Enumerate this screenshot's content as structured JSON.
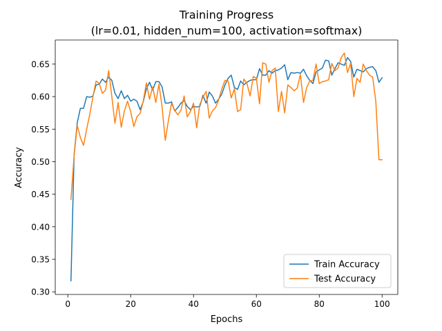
{
  "chart_data": {
    "type": "line",
    "title": "Training Progress",
    "subtitle": "(lr=0.01, hidden_num=100, activation=softmax)",
    "xlabel": "Epochs",
    "ylabel": "Accuracy",
    "xlim": [
      -4,
      105
    ],
    "ylim": [
      0.296,
      0.687
    ],
    "xticks": [
      0,
      20,
      40,
      60,
      80,
      100
    ],
    "yticks": [
      0.3,
      0.35,
      0.4,
      0.45,
      0.5,
      0.55,
      0.6,
      0.65
    ],
    "grid": false,
    "legend_position": "lower-right",
    "series": [
      {
        "name": "Train Accuracy",
        "color": "#1f77b4",
        "x": [
          1,
          2,
          3,
          4,
          5,
          6,
          7,
          8,
          9,
          10,
          11,
          12,
          13,
          14,
          15,
          16,
          17,
          18,
          19,
          20,
          21,
          22,
          23,
          24,
          25,
          26,
          27,
          28,
          29,
          30,
          31,
          32,
          33,
          34,
          35,
          36,
          37,
          38,
          39,
          40,
          41,
          42,
          43,
          44,
          45,
          46,
          47,
          48,
          49,
          50,
          51,
          52,
          53,
          54,
          55,
          56,
          57,
          58,
          59,
          60,
          61,
          62,
          63,
          64,
          65,
          66,
          67,
          68,
          69,
          70,
          71,
          72,
          73,
          74,
          75,
          76,
          77,
          78,
          79,
          80,
          81,
          82,
          83,
          84,
          85,
          86,
          87,
          88,
          89,
          90,
          91,
          92,
          93,
          94,
          95,
          96,
          97,
          98,
          99,
          100
        ],
        "values": [
          0.317,
          0.51,
          0.56,
          0.582,
          0.582,
          0.6,
          0.599,
          0.601,
          0.618,
          0.619,
          0.627,
          0.622,
          0.63,
          0.625,
          0.605,
          0.597,
          0.609,
          0.597,
          0.602,
          0.593,
          0.596,
          0.593,
          0.58,
          0.592,
          0.612,
          0.622,
          0.61,
          0.623,
          0.623,
          0.615,
          0.59,
          0.59,
          0.592,
          0.578,
          0.583,
          0.59,
          0.594,
          0.585,
          0.58,
          0.585,
          0.584,
          0.585,
          0.602,
          0.59,
          0.607,
          0.601,
          0.59,
          0.596,
          0.604,
          0.618,
          0.628,
          0.633,
          0.614,
          0.611,
          0.624,
          0.618,
          0.622,
          0.625,
          0.626,
          0.626,
          0.643,
          0.633,
          0.633,
          0.64,
          0.636,
          0.64,
          0.641,
          0.644,
          0.649,
          0.626,
          0.637,
          0.636,
          0.637,
          0.636,
          0.642,
          0.632,
          0.625,
          0.62,
          0.638,
          0.641,
          0.644,
          0.656,
          0.655,
          0.633,
          0.643,
          0.652,
          0.65,
          0.648,
          0.66,
          0.654,
          0.63,
          0.642,
          0.64,
          0.638,
          0.643,
          0.645,
          0.646,
          0.64,
          0.622,
          0.629
        ]
      },
      {
        "name": "Test Accuracy",
        "color": "#ff7f0e",
        "x": [
          1,
          2,
          3,
          4,
          5,
          6,
          7,
          8,
          9,
          10,
          11,
          12,
          13,
          14,
          15,
          16,
          17,
          18,
          19,
          20,
          21,
          22,
          23,
          24,
          25,
          26,
          27,
          28,
          29,
          30,
          31,
          32,
          33,
          34,
          35,
          36,
          37,
          38,
          39,
          40,
          41,
          42,
          43,
          44,
          45,
          46,
          47,
          48,
          49,
          50,
          51,
          52,
          53,
          54,
          55,
          56,
          57,
          58,
          59,
          60,
          61,
          62,
          63,
          64,
          65,
          66,
          67,
          68,
          69,
          70,
          71,
          72,
          73,
          74,
          75,
          76,
          77,
          78,
          79,
          80,
          81,
          82,
          83,
          84,
          85,
          86,
          87,
          88,
          89,
          90,
          91,
          92,
          93,
          94,
          95,
          96,
          97,
          98,
          99,
          100
        ],
        "values": [
          0.442,
          0.509,
          0.556,
          0.537,
          0.525,
          0.55,
          0.573,
          0.6,
          0.624,
          0.62,
          0.605,
          0.61,
          0.64,
          0.6,
          0.559,
          0.591,
          0.553,
          0.578,
          0.593,
          0.577,
          0.554,
          0.569,
          0.574,
          0.593,
          0.621,
          0.596,
          0.615,
          0.591,
          0.619,
          0.584,
          0.533,
          0.563,
          0.59,
          0.579,
          0.572,
          0.579,
          0.601,
          0.569,
          0.577,
          0.59,
          0.552,
          0.588,
          0.599,
          0.608,
          0.567,
          0.578,
          0.583,
          0.595,
          0.612,
          0.625,
          0.624,
          0.598,
          0.612,
          0.577,
          0.58,
          0.627,
          0.62,
          0.601,
          0.631,
          0.628,
          0.589,
          0.652,
          0.65,
          0.622,
          0.64,
          0.644,
          0.577,
          0.608,
          0.575,
          0.618,
          0.614,
          0.609,
          0.613,
          0.634,
          0.591,
          0.614,
          0.624,
          0.625,
          0.65,
          0.62,
          0.623,
          0.624,
          0.626,
          0.651,
          0.64,
          0.644,
          0.66,
          0.667,
          0.637,
          0.651,
          0.6,
          0.628,
          0.622,
          0.65,
          0.64,
          0.633,
          0.63,
          0.593,
          0.503,
          0.503
        ]
      }
    ]
  }
}
